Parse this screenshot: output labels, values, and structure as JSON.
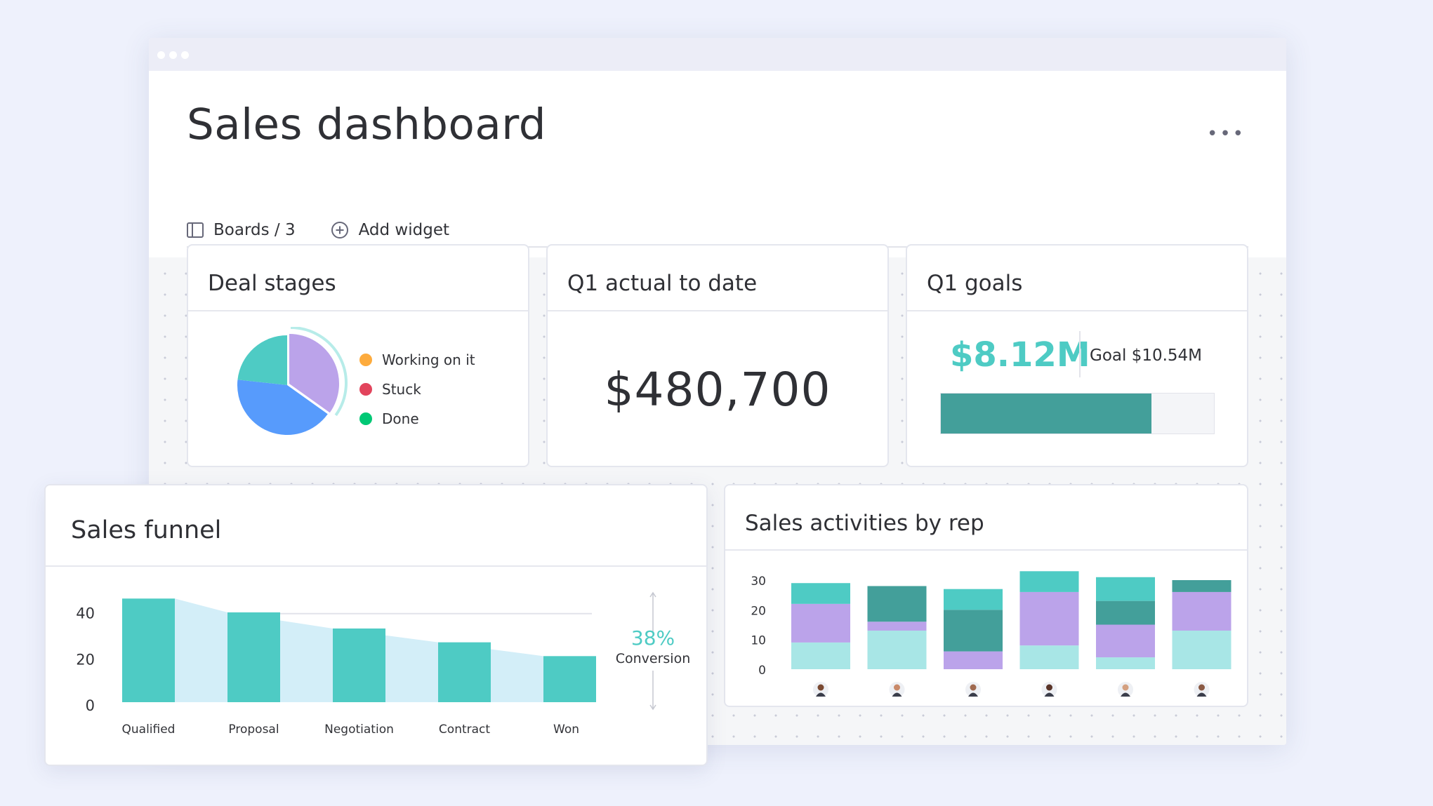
{
  "page": {
    "title": "Sales dashboard",
    "more_label": "•••",
    "toolbar": {
      "boards_label": "Boards / 3",
      "add_widget_label": "Add widget"
    }
  },
  "widgets": {
    "deal_stages": {
      "title": "Deal stages",
      "legend": [
        {
          "label": "Working on it",
          "color": "#fdab3d"
        },
        {
          "label": "Stuck",
          "color": "#e2445c"
        },
        {
          "label": "Done",
          "color": "#00c875"
        }
      ]
    },
    "q1_actual": {
      "title": "Q1 actual to date",
      "value": "$480,700"
    },
    "q1_goals": {
      "title": "Q1 goals",
      "value": "$8.12M",
      "goal_label": "Goal $10.54M",
      "progress": 0.77
    },
    "sales_funnel": {
      "title": "Sales funnel",
      "conversion_pct": "38%",
      "conversion_label": "Conversion"
    },
    "sales_activities": {
      "title": "Sales activities by rep"
    }
  },
  "chart_data": [
    {
      "id": "deal-stages",
      "type": "pie",
      "slices": [
        {
          "value": 30,
          "color": "#bba3ea"
        },
        {
          "value": 36,
          "color": "#579bfc"
        },
        {
          "value": 20,
          "color": "#4ecbc4"
        }
      ]
    },
    {
      "id": "sales-funnel",
      "type": "bar",
      "categories": [
        "Qualified",
        "Proposal",
        "Negotiation",
        "Contract",
        "Won"
      ],
      "values": [
        45,
        39,
        32,
        26,
        20
      ],
      "yticks": [
        0,
        20,
        40
      ],
      "ylim": [
        0,
        46
      ],
      "colors": {
        "bar": "#4ecbc4",
        "area": "#d3eef8",
        "grid": "#e2e3ea"
      }
    },
    {
      "id": "sales-activities",
      "type": "bar",
      "stacked": true,
      "categories": [
        "",
        "",
        "",
        "",
        "",
        ""
      ],
      "yticks": [
        0,
        10,
        20,
        30
      ],
      "ylim": [
        0,
        30
      ],
      "series": [
        {
          "color": "#a8e6e6",
          "values": [
            9,
            13,
            0,
            8,
            4,
            13
          ]
        },
        {
          "color": "#bba3ea",
          "values": [
            13,
            3,
            6,
            18,
            11,
            13
          ]
        },
        {
          "color": "#439f9a",
          "values": [
            0,
            12,
            14,
            0,
            8,
            4
          ]
        },
        {
          "color": "#4ecbc4",
          "values": [
            7,
            0,
            7,
            7,
            8,
            0
          ]
        }
      ],
      "avatar_colors": [
        "#7a4a32",
        "#c98a6a",
        "#a06a50",
        "#5a3428",
        "#d4a080",
        "#8a5a44"
      ]
    }
  ]
}
